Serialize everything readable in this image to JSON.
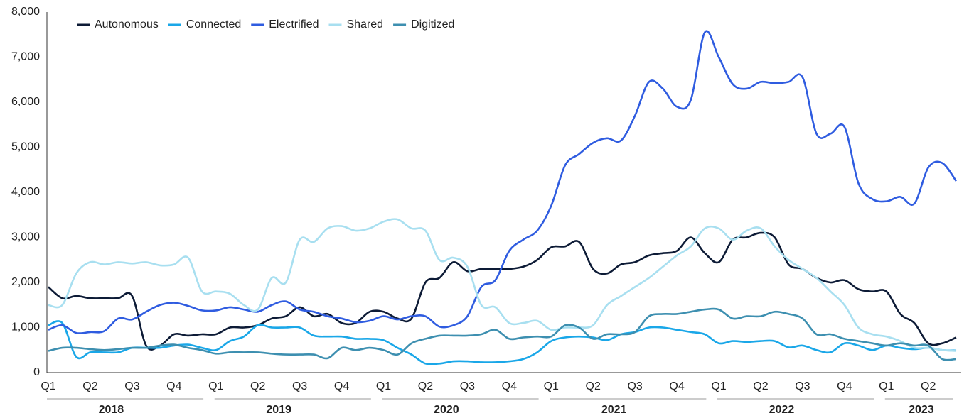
{
  "chart_data": {
    "type": "line",
    "categories": [
      "Q1",
      null,
      null,
      "Q2",
      null,
      null,
      "Q3",
      null,
      null,
      "Q4",
      null,
      null,
      "Q1",
      null,
      null,
      "Q2",
      null,
      null,
      "Q3",
      null,
      null,
      "Q4",
      null,
      null,
      "Q1",
      null,
      null,
      "Q2",
      null,
      null,
      "Q3",
      null,
      null,
      "Q4",
      null,
      null,
      "Q1",
      null,
      null,
      "Q2",
      null,
      null,
      "Q3",
      null,
      null,
      "Q4",
      null,
      null,
      "Q1",
      null,
      null,
      "Q2",
      null,
      null,
      "Q3",
      null,
      null,
      "Q4",
      null,
      null,
      "Q1",
      null,
      null,
      "Q2",
      null,
      null
    ],
    "year_groups": [
      "2018",
      "2019",
      "2020",
      "2021",
      "2022",
      "2023"
    ],
    "ylim": [
      0,
      8000
    ],
    "yticks": [
      0,
      {
        "value": 1000,
        "label": "1,000"
      },
      {
        "value": 2000,
        "label": "2,000"
      },
      {
        "value": 3000,
        "label": "3,000"
      },
      {
        "value": 4000,
        "label": "4,000"
      },
      {
        "value": 5000,
        "label": "5,000"
      },
      {
        "value": 6000,
        "label": "6,000"
      },
      {
        "value": 7000,
        "label": "7,000"
      },
      {
        "value": 8000,
        "label": "8,000"
      }
    ],
    "legend": "top-left",
    "series": [
      {
        "name": "Autonomous",
        "color": "#0d1b36",
        "values": [
          1900,
          1650,
          1700,
          1650,
          1650,
          1650,
          1700,
          600,
          600,
          850,
          820,
          850,
          850,
          1000,
          1000,
          1050,
          1200,
          1250,
          1450,
          1250,
          1300,
          1100,
          1100,
          1350,
          1350,
          1200,
          1200,
          2000,
          2100,
          2450,
          2250,
          2300,
          2300,
          2300,
          2350,
          2500,
          2780,
          2800,
          2900,
          2300,
          2200,
          2400,
          2450,
          2600,
          2650,
          2700,
          3000,
          2650,
          2450,
          2950,
          3000,
          3100,
          3000,
          2400,
          2300,
          2100,
          2000,
          2050,
          1850,
          1800,
          1800,
          1300,
          1100,
          650,
          650,
          780
        ]
      },
      {
        "name": "Connected",
        "color": "#1aa7e8",
        "values": [
          1050,
          1100,
          350,
          450,
          450,
          450,
          550,
          550,
          550,
          600,
          620,
          550,
          500,
          700,
          800,
          1050,
          1000,
          1000,
          1000,
          820,
          800,
          800,
          750,
          750,
          720,
          550,
          400,
          200,
          200,
          250,
          250,
          230,
          230,
          250,
          300,
          450,
          700,
          780,
          800,
          780,
          720,
          850,
          900,
          1000,
          1000,
          950,
          900,
          850,
          650,
          700,
          680,
          700,
          700,
          560,
          600,
          500,
          450,
          650,
          600,
          500,
          600,
          550,
          520,
          550,
          500,
          490
        ]
      },
      {
        "name": "Electrified",
        "color": "#2f5ce0",
        "values": [
          950,
          1050,
          880,
          900,
          920,
          1200,
          1180,
          1350,
          1500,
          1550,
          1480,
          1380,
          1380,
          1450,
          1400,
          1350,
          1500,
          1580,
          1400,
          1350,
          1250,
          1200,
          1120,
          1150,
          1250,
          1180,
          1250,
          1250,
          1020,
          1050,
          1250,
          1900,
          2050,
          2700,
          2950,
          3150,
          3700,
          4600,
          4850,
          5100,
          5200,
          5150,
          5700,
          6450,
          6300,
          5900,
          6050,
          7550,
          7000,
          6400,
          6300,
          6450,
          6420,
          6450,
          6550,
          5300,
          5300,
          5450,
          4200,
          3850,
          3800,
          3900,
          3750,
          4550,
          4650,
          4250
        ]
      },
      {
        "name": "Shared",
        "color": "#a8dff0",
        "values": [
          1500,
          1500,
          2200,
          2450,
          2400,
          2450,
          2420,
          2450,
          2380,
          2400,
          2550,
          1800,
          1800,
          1750,
          1500,
          1400,
          2100,
          2000,
          2950,
          2900,
          3200,
          3250,
          3150,
          3200,
          3350,
          3400,
          3200,
          3150,
          2500,
          2550,
          2350,
          1500,
          1450,
          1100,
          1100,
          1150,
          950,
          1000,
          1000,
          1050,
          1500,
          1700,
          1900,
          2100,
          2350,
          2600,
          2800,
          3200,
          3200,
          2950,
          3150,
          3200,
          2800,
          2500,
          2300,
          2100,
          1800,
          1500,
          1000,
          850,
          800,
          700,
          550,
          550,
          500,
          480
        ]
      },
      {
        "name": "Digitized",
        "color": "#3d8fb0",
        "values": [
          480,
          550,
          550,
          520,
          500,
          520,
          550,
          550,
          600,
          620,
          550,
          500,
          420,
          450,
          450,
          450,
          420,
          400,
          400,
          400,
          320,
          550,
          500,
          550,
          500,
          400,
          650,
          750,
          820,
          820,
          820,
          850,
          950,
          750,
          780,
          800,
          800,
          1050,
          1000,
          750,
          850,
          850,
          900,
          1250,
          1300,
          1300,
          1350,
          1400,
          1400,
          1200,
          1250,
          1250,
          1350,
          1300,
          1200,
          850,
          850,
          750,
          700,
          650,
          600,
          650,
          600,
          600,
          300,
          300
        ]
      }
    ]
  }
}
